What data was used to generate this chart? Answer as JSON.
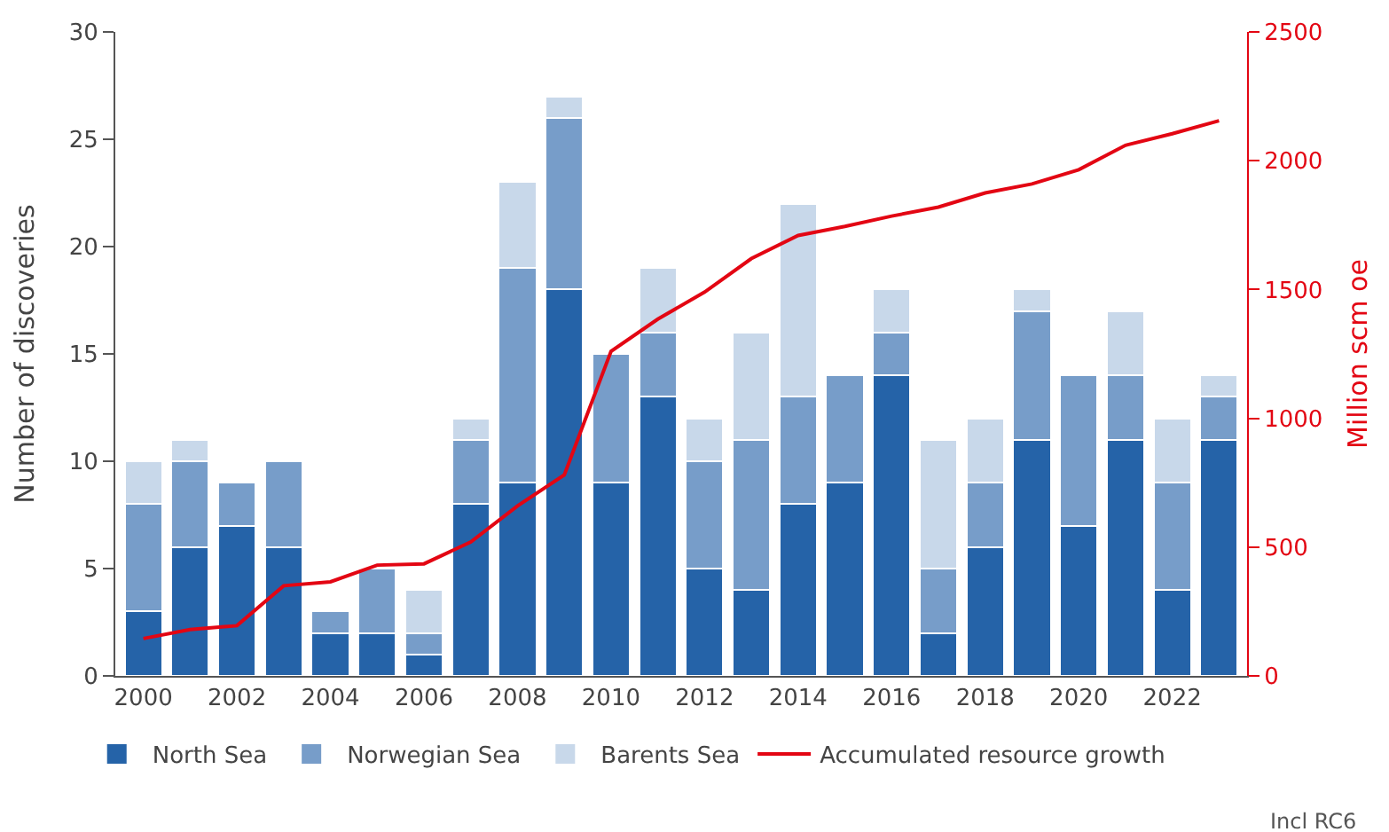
{
  "chart_data": {
    "type": "bar",
    "stacked": true,
    "x": [
      2000,
      2001,
      2002,
      2003,
      2004,
      2005,
      2006,
      2007,
      2008,
      2009,
      2010,
      2011,
      2012,
      2013,
      2014,
      2015,
      2016,
      2017,
      2018,
      2019,
      2020,
      2021,
      2022,
      2023
    ],
    "xlim": [
      1999.4,
      2023.6
    ],
    "xticks": [
      2000,
      2002,
      2004,
      2006,
      2008,
      2010,
      2012,
      2014,
      2016,
      2018,
      2020,
      2022
    ],
    "ylabel": "Number of discoveries",
    "y2label": "Million scm oe",
    "ylim": [
      0,
      30
    ],
    "yticks": [
      0,
      5,
      10,
      15,
      20,
      25,
      30
    ],
    "y2lim": [
      0,
      2500
    ],
    "y2ticks": [
      0,
      500,
      1000,
      1500,
      2000,
      2500
    ],
    "legend": "bottom",
    "series": [
      {
        "name": "North Sea",
        "color": "#2563a8",
        "values": [
          3,
          6,
          7,
          6,
          2,
          2,
          1,
          8,
          9,
          18,
          9,
          13,
          5,
          4,
          8,
          9,
          14,
          2,
          6,
          11,
          7,
          11,
          4,
          11
        ]
      },
      {
        "name": "Norwegian Sea",
        "color": "#779dc9",
        "values": [
          5,
          4,
          2,
          4,
          1,
          3,
          1,
          3,
          10,
          8,
          6,
          3,
          5,
          7,
          5,
          5,
          2,
          3,
          3,
          6,
          7,
          3,
          5,
          2
        ]
      },
      {
        "name": "Barents Sea",
        "color": "#c8d8ea",
        "values": [
          2,
          1,
          0,
          0,
          0,
          0,
          2,
          1,
          4,
          1,
          0,
          3,
          2,
          5,
          9,
          0,
          2,
          6,
          3,
          1,
          0,
          3,
          3,
          1
        ]
      },
      {
        "name": "Accumulated resource growth",
        "type": "line",
        "axis": "y2",
        "color": "#e30613",
        "values": [
          145,
          180,
          195,
          350,
          365,
          430,
          435,
          520,
          660,
          780,
          1260,
          1385,
          1490,
          1620,
          1710,
          1745,
          1785,
          1820,
          1875,
          1910,
          1965,
          2060,
          2105,
          2155
        ]
      }
    ],
    "annotations": [
      "Incl RC6"
    ]
  }
}
